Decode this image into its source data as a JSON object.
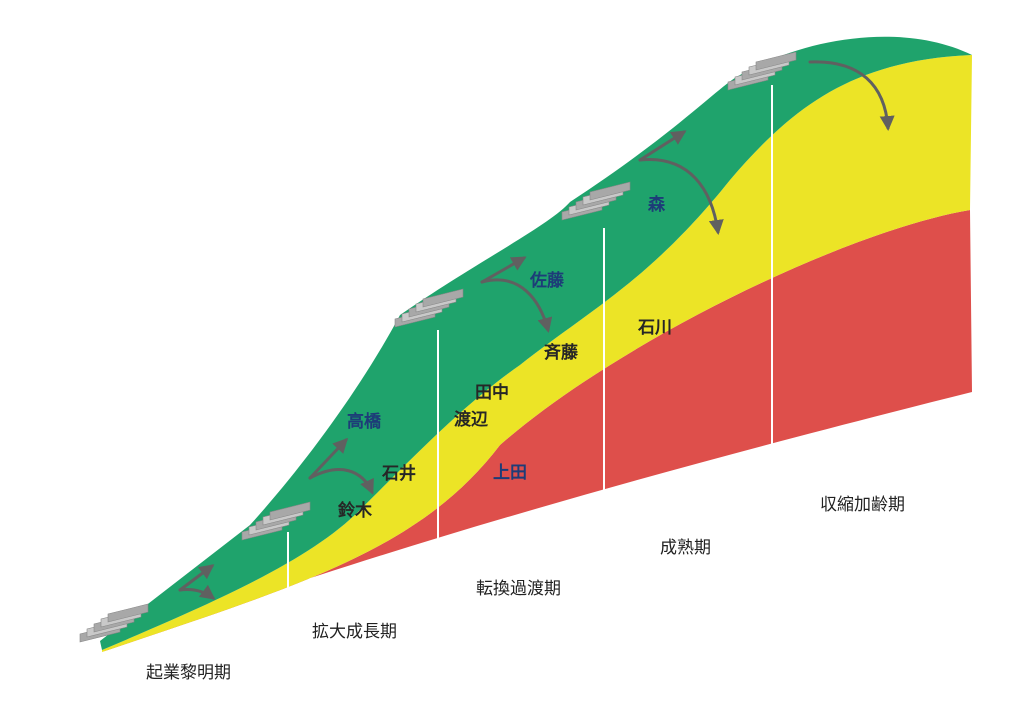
{
  "colors": {
    "green": "#1fa36c",
    "yellow": "#ece426",
    "red": "#de4f4b",
    "divider": "#ffffff",
    "arrow": "#606060",
    "name_blue": "#1d3c78",
    "name_dark": "#262626",
    "stair": "#a8a8a8"
  },
  "stages": [
    {
      "key": "founding",
      "label": "起業黎明期"
    },
    {
      "key": "expansion",
      "label": "拡大成長期"
    },
    {
      "key": "transition",
      "label": "転換過渡期"
    },
    {
      "key": "maturity",
      "label": "成熟期"
    },
    {
      "key": "decline",
      "label": "収縮加齢期"
    }
  ],
  "bands": [
    {
      "key": "top",
      "color_key": "green"
    },
    {
      "key": "middle",
      "color_key": "yellow"
    },
    {
      "key": "bottom",
      "color_key": "red"
    }
  ],
  "names": {
    "takahashi": "高橋",
    "ishii": "石井",
    "suzuki": "鈴木",
    "tanaka": "田中",
    "watanabe": "渡辺",
    "ueda": "上田",
    "sato": "佐藤",
    "saito": "斉藤",
    "ishikawa": "石川",
    "mori": "森"
  }
}
